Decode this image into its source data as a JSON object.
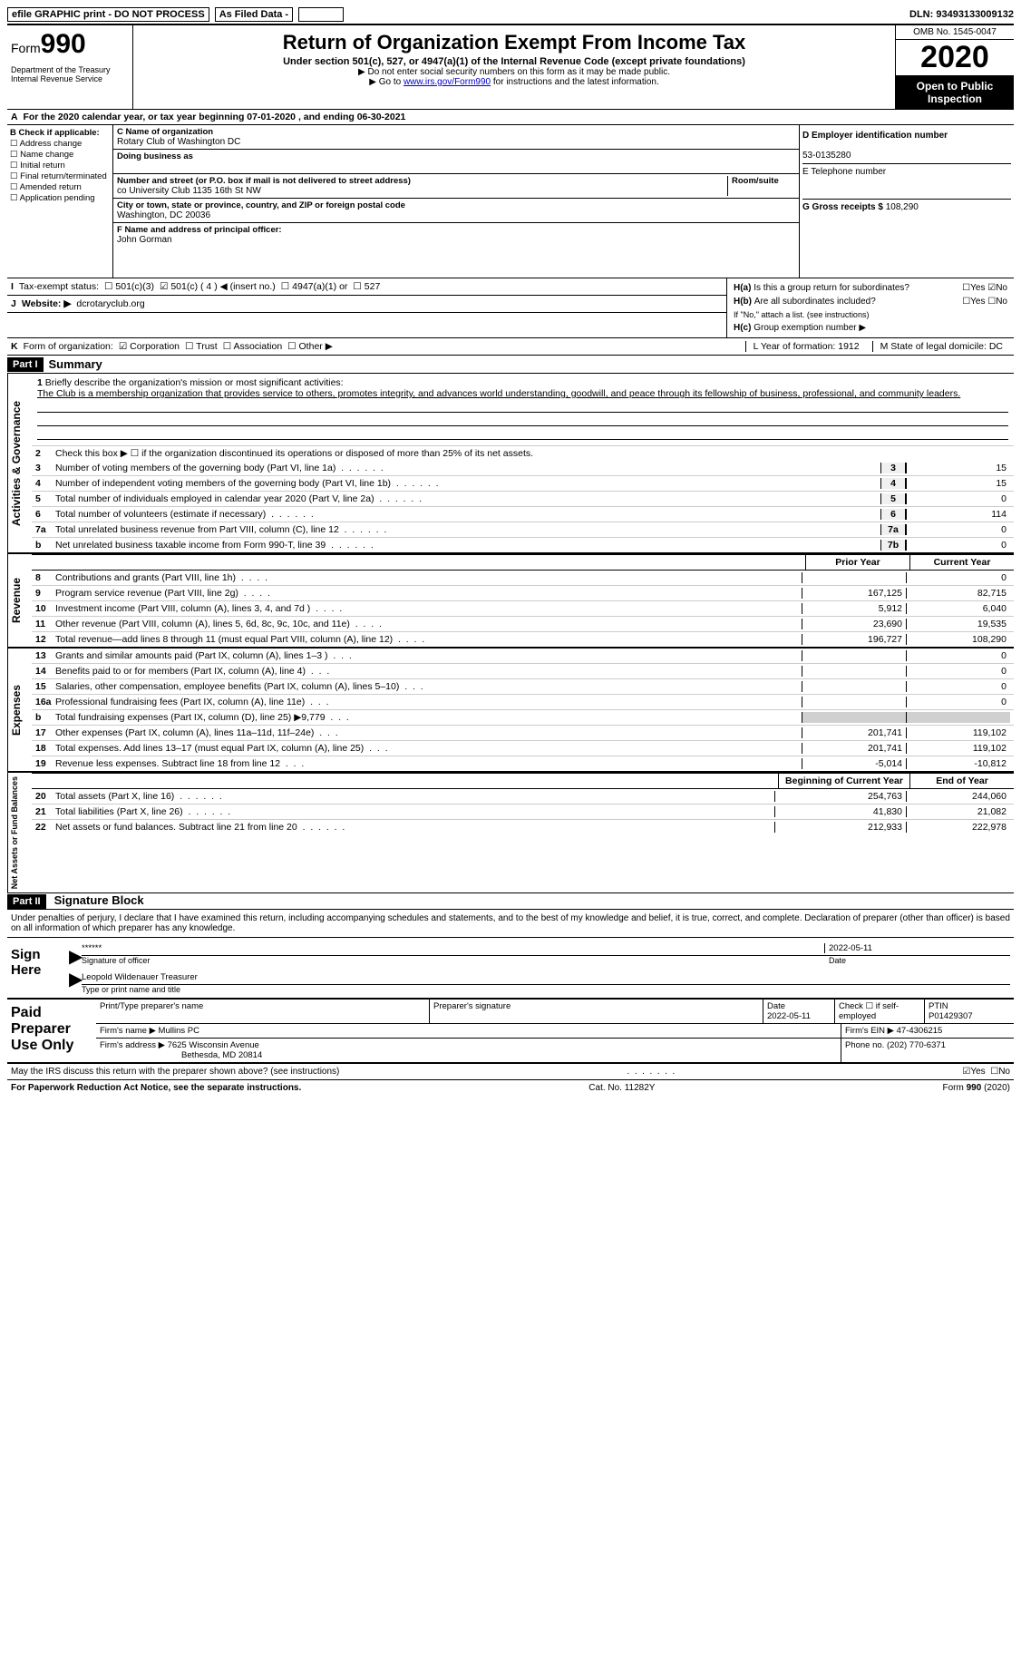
{
  "topbar": {
    "efile": "efile GRAPHIC print - DO NOT PROCESS",
    "asfiled": "As Filed Data -",
    "dln_label": "DLN:",
    "dln": "93493133009132"
  },
  "header": {
    "form_prefix": "Form",
    "form_num": "990",
    "dept": "Department of the Treasury\nInternal Revenue Service",
    "title": "Return of Organization Exempt From Income Tax",
    "subtitle": "Under section 501(c), 527, or 4947(a)(1) of the Internal Revenue Code (except private foundations)",
    "note1": "▶ Do not enter social security numbers on this form as it may be made public.",
    "note2_pre": "▶ Go to ",
    "note2_link": "www.irs.gov/Form990",
    "note2_post": " for instructions and the latest information.",
    "omb": "OMB No. 1545-0047",
    "year": "2020",
    "open": "Open to Public Inspection"
  },
  "period": {
    "label_a": "A",
    "text_pre": "For the 2020 calendar year, or tax year beginning ",
    "begin": "07-01-2020",
    "mid": " , and ending ",
    "end": "06-30-2021"
  },
  "colB": {
    "header": "B Check if applicable:",
    "items": [
      "Address change",
      "Name change",
      "Initial return",
      "Final return/terminated",
      "Amended return",
      "Application pending"
    ]
  },
  "colC": {
    "name_label": "C Name of organization",
    "name": "Rotary Club of Washington DC",
    "dba_label": "Doing business as",
    "addr_label": "Number and street (or P.O. box if mail is not delivered to street address)",
    "room_label": "Room/suite",
    "addr": "co University Club 1135 16th St NW",
    "city_label": "City or town, state or province, country, and ZIP or foreign postal code",
    "city": "Washington, DC  20036",
    "officer_label": "F  Name and address of principal officer:",
    "officer": "John Gorman"
  },
  "colD": {
    "d_label": "D Employer identification number",
    "ein": "53-0135280",
    "e_label": "E Telephone number",
    "g_label": "G Gross receipts $",
    "g_val": "108,290"
  },
  "H": {
    "a_label": "H(a)",
    "a_text": "Is this a group return for subordinates?",
    "a_no": "No",
    "b_label": "H(b)",
    "b_text": "Are all subordinates included?",
    "b_note": "If \"No,\" attach a list. (see instructions)",
    "c_label": "H(c)",
    "c_text": "Group exemption number ▶"
  },
  "status": {
    "I": "I",
    "label": "Tax-exempt status:",
    "opts": [
      "501(c)(3)",
      "501(c) ( 4 ) ◀ (insert no.)",
      "4947(a)(1) or",
      "527"
    ],
    "checked_idx": 1
  },
  "website": {
    "J": "J",
    "label": "Website: ▶",
    "value": "dcrotaryclub.org"
  },
  "korg": {
    "K": "K",
    "label": "Form of organization:",
    "opts": [
      "Corporation",
      "Trust",
      "Association",
      "Other ▶"
    ],
    "L": "L Year of formation: 1912",
    "M": "M State of legal domicile: DC"
  },
  "partI": {
    "tag": "Part I",
    "title": "Summary"
  },
  "mission": {
    "num": "1",
    "label": "Briefly describe the organization's mission or most significant activities:",
    "text": "The Club is a membership organization that provides service to others, promotes integrity, and advances world understanding, goodwill, and peace through its fellowship of business, professional, and community leaders."
  },
  "line2": {
    "num": "2",
    "text": "Check this box ▶ ☐ if the organization discontinued its operations or disposed of more than 25% of its net assets."
  },
  "gov_lines": [
    {
      "n": "3",
      "d": "Number of voting members of the governing body (Part VI, line 1a)",
      "box": "3",
      "v": "15"
    },
    {
      "n": "4",
      "d": "Number of independent voting members of the governing body (Part VI, line 1b)",
      "box": "4",
      "v": "15"
    },
    {
      "n": "5",
      "d": "Total number of individuals employed in calendar year 2020 (Part V, line 2a)",
      "box": "5",
      "v": "0"
    },
    {
      "n": "6",
      "d": "Total number of volunteers (estimate if necessary)",
      "box": "6",
      "v": "114"
    },
    {
      "n": "7a",
      "d": "Total unrelated business revenue from Part VIII, column (C), line 12",
      "box": "7a",
      "v": "0"
    },
    {
      "n": "b",
      "d": "Net unrelated business taxable income from Form 990-T, line 39",
      "box": "7b",
      "v": "0"
    }
  ],
  "col_headers": {
    "prior": "Prior Year",
    "current": "Current Year"
  },
  "revenue_label": "Revenue",
  "revenue_lines": [
    {
      "n": "8",
      "d": "Contributions and grants (Part VIII, line 1h)",
      "p": "",
      "c": "0"
    },
    {
      "n": "9",
      "d": "Program service revenue (Part VIII, line 2g)",
      "p": "167,125",
      "c": "82,715"
    },
    {
      "n": "10",
      "d": "Investment income (Part VIII, column (A), lines 3, 4, and 7d )",
      "p": "5,912",
      "c": "6,040"
    },
    {
      "n": "11",
      "d": "Other revenue (Part VIII, column (A), lines 5, 6d, 8c, 9c, 10c, and 11e)",
      "p": "23,690",
      "c": "19,535"
    },
    {
      "n": "12",
      "d": "Total revenue—add lines 8 through 11 (must equal Part VIII, column (A), line 12)",
      "p": "196,727",
      "c": "108,290"
    }
  ],
  "expenses_label": "Expenses",
  "expense_lines": [
    {
      "n": "13",
      "d": "Grants and similar amounts paid (Part IX, column (A), lines 1–3 )",
      "p": "",
      "c": "0"
    },
    {
      "n": "14",
      "d": "Benefits paid to or for members (Part IX, column (A), line 4)",
      "p": "",
      "c": "0"
    },
    {
      "n": "15",
      "d": "Salaries, other compensation, employee benefits (Part IX, column (A), lines 5–10)",
      "p": "",
      "c": "0"
    },
    {
      "n": "16a",
      "d": "Professional fundraising fees (Part IX, column (A), line 11e)",
      "p": "",
      "c": "0"
    },
    {
      "n": "b",
      "d": "Total fundraising expenses (Part IX, column (D), line 25) ▶9,779",
      "p": "grey",
      "c": "grey"
    },
    {
      "n": "17",
      "d": "Other expenses (Part IX, column (A), lines 11a–11d, 11f–24e)",
      "p": "201,741",
      "c": "119,102"
    },
    {
      "n": "18",
      "d": "Total expenses. Add lines 13–17 (must equal Part IX, column (A), line 25)",
      "p": "201,741",
      "c": "119,102"
    },
    {
      "n": "19",
      "d": "Revenue less expenses. Subtract line 18 from line 12",
      "p": "-5,014",
      "c": "-10,812"
    }
  ],
  "netassets_label": "Net Assets or Fund Balances",
  "net_headers": {
    "begin": "Beginning of Current Year",
    "end": "End of Year"
  },
  "net_lines": [
    {
      "n": "20",
      "d": "Total assets (Part X, line 16)",
      "p": "254,763",
      "c": "244,060"
    },
    {
      "n": "21",
      "d": "Total liabilities (Part X, line 26)",
      "p": "41,830",
      "c": "21,082"
    },
    {
      "n": "22",
      "d": "Net assets or fund balances. Subtract line 21 from line 20",
      "p": "212,933",
      "c": "222,978"
    }
  ],
  "partII": {
    "tag": "Part II",
    "title": "Signature Block"
  },
  "perjury": "Under penalties of perjury, I declare that I have examined this return, including accompanying schedules and statements, and to the best of my knowledge and belief, it is true, correct, and complete. Declaration of preparer (other than officer) is based on all information of which preparer has any knowledge.",
  "sign": {
    "label": "Sign Here",
    "stars": "******",
    "sig_label": "Signature of officer",
    "date": "2022-05-11",
    "date_label": "Date",
    "name": "Leopold Wildenauer Treasurer",
    "name_label": "Type or print name and title"
  },
  "preparer": {
    "label": "Paid Preparer Use Only",
    "h1": "Print/Type preparer's name",
    "h2": "Preparer's signature",
    "h3": "Date",
    "date": "2022-05-11",
    "h4": "Check ☐ if self-employed",
    "h5": "PTIN",
    "ptin": "P01429307",
    "firm_label": "Firm's name    ▶",
    "firm": "Mullins PC",
    "ein_label": "Firm's EIN ▶",
    "ein": "47-4306215",
    "addr_label": "Firm's address ▶",
    "addr1": "7625 Wisconsin Avenue",
    "addr2": "Bethesda, MD  20814",
    "phone_label": "Phone no.",
    "phone": "(202) 770-6371"
  },
  "discuss": {
    "text": "May the IRS discuss this return with the preparer shown above? (see instructions)",
    "yes": "Yes",
    "no": "No"
  },
  "footer": {
    "pra": "For Paperwork Reduction Act Notice, see the separate instructions.",
    "cat": "Cat. No. 11282Y",
    "form": "Form 990 (2020)"
  },
  "gov_label": "Activities & Governance"
}
